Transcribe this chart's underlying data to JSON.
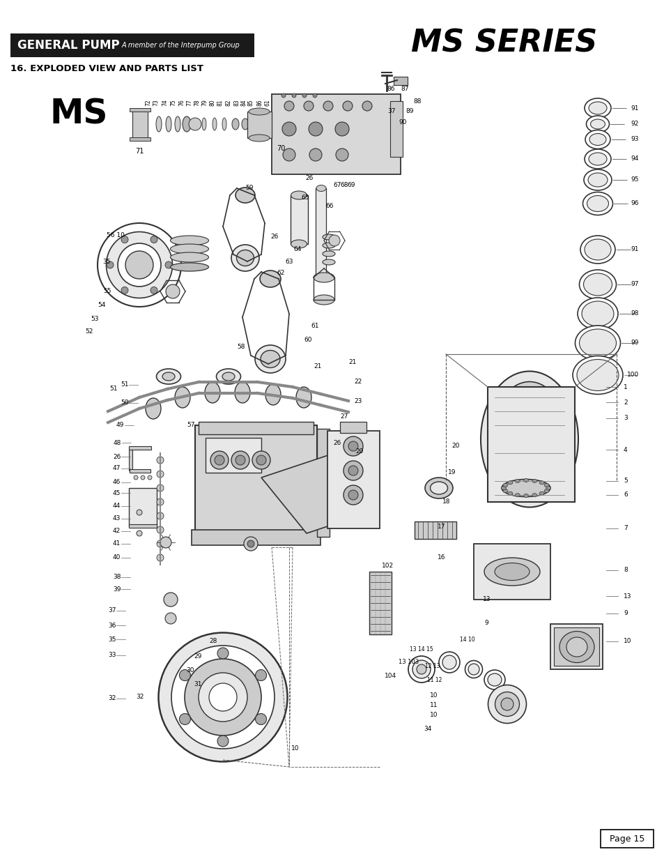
{
  "page_width": 9.54,
  "page_height": 12.35,
  "dpi": 100,
  "background_color": "#ffffff",
  "header_box_color": "#1a1a1a",
  "header_text_color": "#ffffff",
  "header_brand": "GENERAL PUMP",
  "header_subtitle": "A member of the Interpump Group",
  "title_series": "MS SERIES",
  "section_title": "16. EXPLODED VIEW AND PARTS LIST",
  "ms_label": "MS",
  "page_number": "Page 15",
  "text_color": "#000000",
  "diagram_color": "#333333",
  "gray_light": "#e8e8e8",
  "gray_mid": "#cccccc",
  "gray_dark": "#999999"
}
